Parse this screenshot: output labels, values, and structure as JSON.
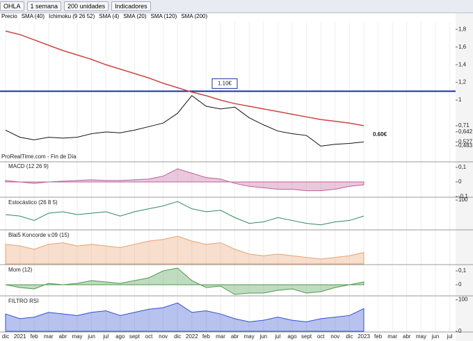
{
  "toolbar": {
    "symbol": "OHLA",
    "period": "1 semana",
    "units": "200 unidades",
    "indicators": "Indicadores"
  },
  "legend": [
    "Precio",
    "SMA (40)",
    "Ichimoku (9 26 52)",
    "SMA (4)",
    "SMA (20)",
    "SMA (120)",
    "SMA (200)"
  ],
  "watermark": "ProRealTime.com - Fin de Día",
  "time_axis": {
    "labels": [
      "dic",
      "2021",
      "feb",
      "mar",
      "abr",
      "may",
      "jun",
      "jul",
      "ago",
      "sept",
      "oct",
      "nov",
      "dic",
      "2022",
      "feb",
      "mar",
      "abr",
      "may",
      "jun",
      "jul",
      "ago",
      "sept",
      "oct",
      "nov",
      "dic",
      "2023",
      "feb",
      "mar",
      "abr",
      "may",
      "jun",
      "jul"
    ]
  },
  "chart_data": [
    {
      "type": "line",
      "ylim": [
        0.31,
        1.88
      ],
      "yticks": [
        {
          "value": 1.8,
          "label": "1,8"
        },
        {
          "value": 1.6,
          "label": "1,6"
        },
        {
          "value": 1.4,
          "label": "1,4"
        },
        {
          "value": 1.2,
          "label": "1,2"
        },
        1,
        {
          "value": 0.71,
          "label": "0,71"
        },
        {
          "value": 0.642,
          "label": "0,642"
        },
        {
          "value": 0.527,
          "label": "0,527"
        },
        {
          "value": 0.483,
          "label": "0,483"
        }
      ],
      "levels": [
        {
          "value": 1.1,
          "label": "1.10€"
        }
      ],
      "annotations": [
        "0.60€"
      ],
      "series": [
        {
          "color": "#111111",
          "values": [
            0.66,
            0.58,
            0.55,
            0.58,
            0.57,
            0.58,
            0.62,
            0.64,
            0.63,
            0.66,
            0.7,
            0.74,
            0.85,
            1.05,
            0.93,
            0.9,
            0.92,
            0.8,
            0.72,
            0.65,
            0.62,
            0.6,
            0.48,
            0.5,
            0.51,
            0.527
          ]
        },
        {
          "color": "#cc4444",
          "values": [
            1.78,
            1.74,
            1.68,
            1.62,
            1.56,
            1.51,
            1.46,
            1.4,
            1.35,
            1.3,
            1.25,
            1.19,
            1.14,
            1.09,
            1.05,
            1.0,
            0.96,
            0.93,
            0.9,
            0.87,
            0.84,
            0.81,
            0.78,
            0.76,
            0.74,
            0.71
          ]
        }
      ]
    },
    {
      "type": "area",
      "title": "MACD (12 26 9)",
      "ylim": [
        -0.1,
        0.133
      ],
      "yticks": [
        {
          "value": 0.1,
          "label": "0,1"
        },
        0,
        {
          "value": -0.1,
          "label": "-0,1"
        }
      ],
      "series": [
        {
          "color": "#c0609a",
          "values": [
            0.01,
            0,
            -0.01,
            0,
            0.005,
            0.01,
            0.015,
            0.01,
            0.01,
            0.015,
            0.02,
            0.04,
            0.09,
            0.06,
            0.03,
            0.02,
            -0.01,
            -0.03,
            -0.04,
            -0.05,
            -0.05,
            -0.06,
            -0.06,
            -0.05,
            -0.03,
            -0.02
          ]
        }
      ]
    },
    {
      "type": "line",
      "title": "Estocástico (26 8 5)",
      "ylim": [
        0,
        105
      ],
      "yticks": [
        100
      ],
      "series": [
        {
          "color": "#2e8b57",
          "values": [
            50,
            45,
            30,
            55,
            60,
            50,
            55,
            60,
            45,
            60,
            70,
            80,
            95,
            70,
            60,
            65,
            40,
            20,
            25,
            40,
            30,
            20,
            15,
            25,
            30,
            45
          ]
        }
      ]
    },
    {
      "type": "area",
      "title": "Blai5 Koncorde v.09 (15)",
      "ylim": [
        0,
        100
      ],
      "yticks": [],
      "series": [
        {
          "color": "#e8a070",
          "values": [
            60,
            55,
            45,
            60,
            65,
            55,
            60,
            55,
            50,
            60,
            70,
            75,
            85,
            70,
            60,
            65,
            45,
            30,
            25,
            30,
            25,
            20,
            15,
            20,
            25,
            35
          ]
        }
      ]
    },
    {
      "type": "area",
      "title": "Mom (12)",
      "ylim": [
        -0.075,
        0.135
      ],
      "yticks": [
        {
          "value": 0.1,
          "label": "0,1"
        },
        0
      ],
      "series": [
        {
          "color": "#4a9a4a",
          "values": [
            0,
            -0.02,
            -0.03,
            0.01,
            0,
            0.01,
            0.03,
            0.02,
            0.01,
            0.03,
            0.05,
            0.1,
            0.12,
            0.03,
            -0.02,
            -0.01,
            -0.07,
            -0.06,
            -0.06,
            -0.04,
            -0.03,
            -0.06,
            -0.05,
            -0.02,
            0,
            0.02
          ]
        }
      ]
    },
    {
      "type": "area",
      "title": "FILTRO RSI",
      "ylim": [
        0,
        108
      ],
      "yticks": [
        100,
        0
      ],
      "series": [
        {
          "color": "#3050d0",
          "values": [
            55,
            40,
            45,
            60,
            55,
            50,
            60,
            65,
            50,
            60,
            70,
            75,
            90,
            60,
            65,
            55,
            40,
            30,
            35,
            45,
            35,
            30,
            40,
            45,
            50,
            72
          ]
        }
      ]
    }
  ]
}
